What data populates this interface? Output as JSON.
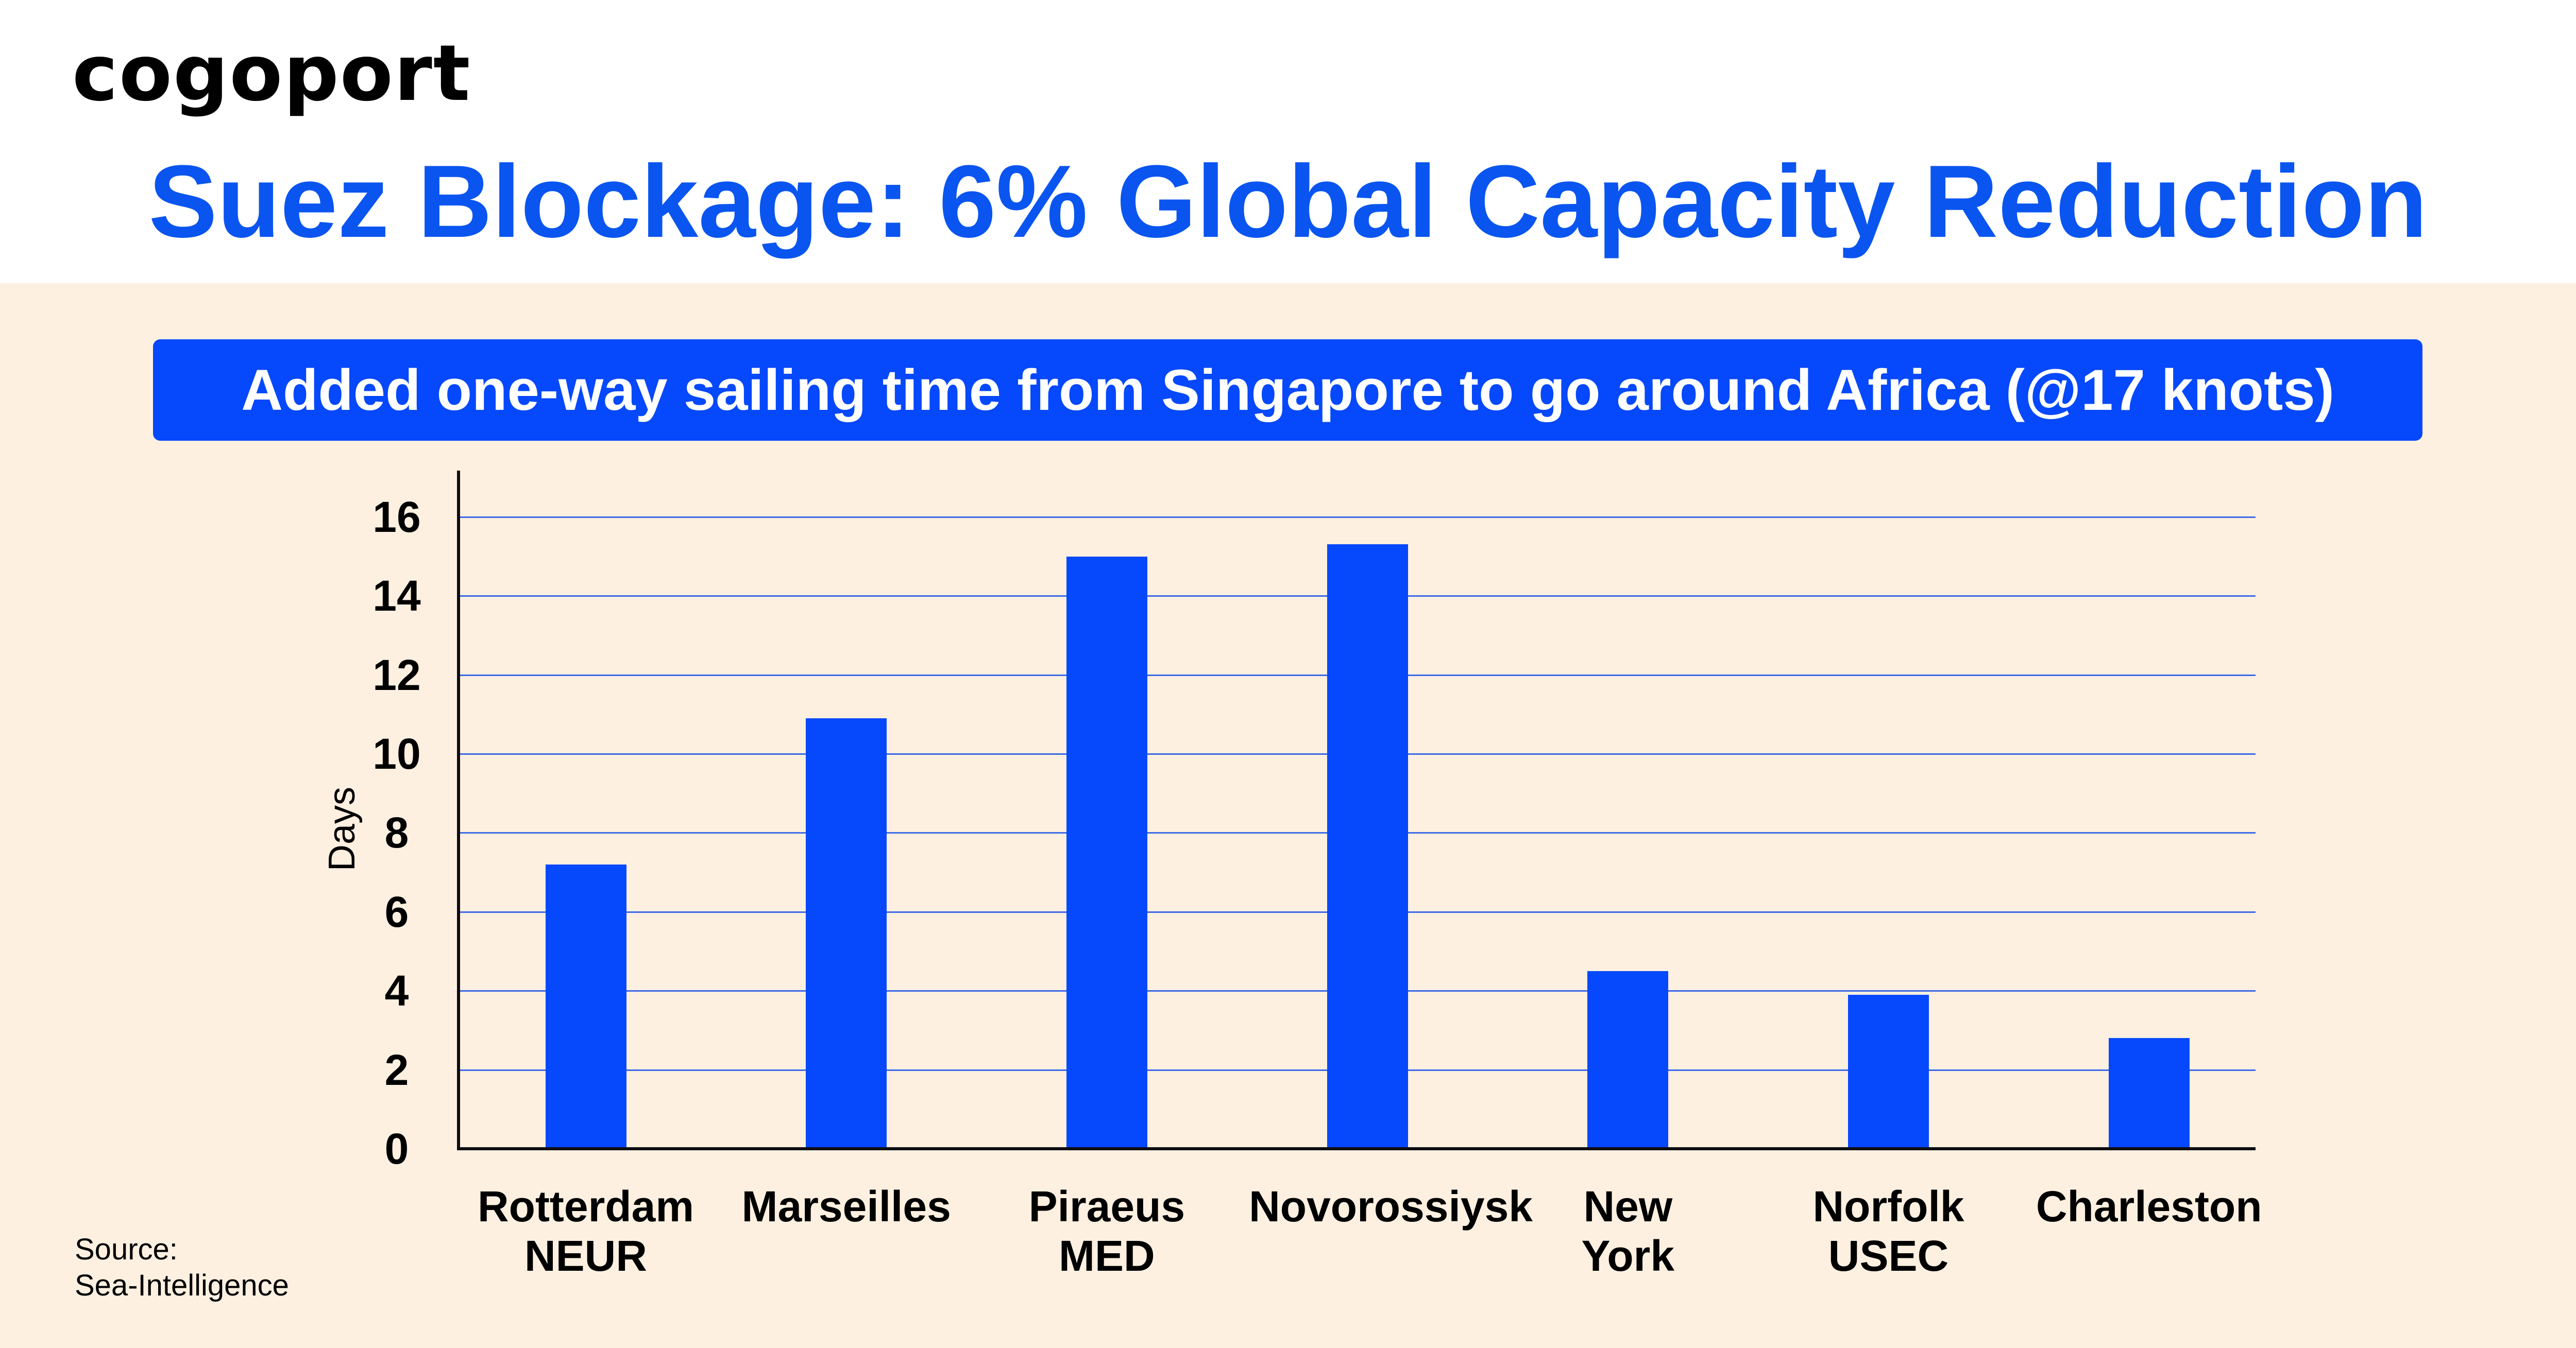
{
  "brand": {
    "logo_text": "cogoport"
  },
  "header": {
    "title": "Suez Blockage: 6% Global Capacity Reduction"
  },
  "banner": {
    "text": "Added one-way sailing time from Singapore to go around Africa (@17 knots)"
  },
  "source": {
    "line1": "Source:",
    "line2": "Sea-Intelligence"
  },
  "colors": {
    "title": "#0a55f0",
    "bar": "#0648fb",
    "banner_bg": "#0648fb",
    "panel_bg": "#fdf0e0",
    "gridline": "#3d6ae8",
    "axis": "#0d0d12"
  },
  "chart_data": {
    "type": "bar",
    "title": "Added one-way sailing time from Singapore to go around Africa (@17 knots)",
    "xlabel": "",
    "ylabel": "Days",
    "ylim": [
      0,
      16
    ],
    "yticks": [
      0,
      2,
      4,
      6,
      8,
      10,
      12,
      14,
      16
    ],
    "grid": true,
    "legend": null,
    "categories": [
      "Rotterdam NEUR",
      "Marseilles",
      "Piraeus MED",
      "Novorossiysk",
      "New York",
      "Norfolk USEC",
      "Charleston"
    ],
    "category_lines": [
      [
        "Rotterdam",
        "NEUR"
      ],
      [
        "Marseilles",
        ""
      ],
      [
        "Piraeus",
        "MED"
      ],
      [
        "Novorossiysk",
        ""
      ],
      [
        "New",
        "York"
      ],
      [
        "Norfolk",
        "USEC"
      ],
      [
        "Charleston",
        ""
      ]
    ],
    "values": [
      7.2,
      10.9,
      15.0,
      15.3,
      4.5,
      3.9,
      2.8
    ],
    "source": "Sea-Intelligence"
  }
}
